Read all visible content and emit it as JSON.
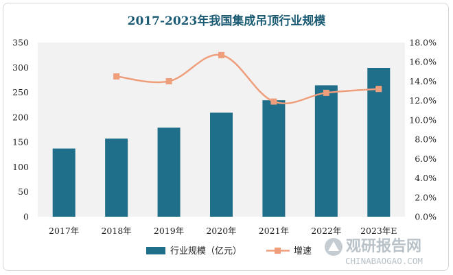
{
  "chart_data": {
    "type": "bar",
    "title": "2017-2023年我国集成吊顶行业规模",
    "categories": [
      "2017年",
      "2018年",
      "2019年",
      "2020年",
      "2021年",
      "2022年",
      "2023年E"
    ],
    "series": [
      {
        "name": "行业规模（亿元）",
        "type": "bar",
        "axis": "left",
        "color": "#1f6f8b",
        "values": [
          137,
          157,
          179,
          209,
          234,
          264,
          299
        ]
      },
      {
        "name": "增速",
        "type": "line",
        "axis": "right",
        "color": "#ef9e7c",
        "values": [
          null,
          14.5,
          14.0,
          16.7,
          11.9,
          12.8,
          13.2
        ]
      }
    ],
    "ylim_left": [
      0,
      350
    ],
    "yticks_left": [
      "0",
      "50",
      "100",
      "150",
      "200",
      "250",
      "300",
      "350"
    ],
    "ylim_right": [
      0,
      18
    ],
    "yticks_right": [
      "0.0%",
      "2.0%",
      "4.0%",
      "6.0%",
      "8.0%",
      "10.0%",
      "12.0%",
      "14.0%",
      "16.0%",
      "18.0%"
    ],
    "legend_position": "bottom",
    "grid": false
  },
  "watermark": {
    "name": "观研报告网",
    "url": "CHINABAOGAO.COM"
  }
}
